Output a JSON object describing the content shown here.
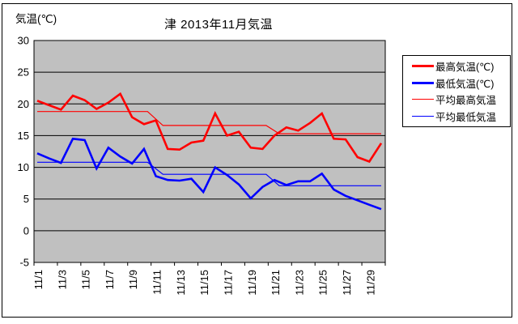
{
  "chart_data": {
    "type": "line",
    "title": "津 2013年11月気温",
    "ylabel": "気温(℃)",
    "ylim": [
      -5,
      30
    ],
    "yticks": [
      30,
      25,
      20,
      15,
      10,
      5,
      0,
      -5
    ],
    "x_days": [
      1,
      2,
      3,
      4,
      5,
      6,
      7,
      8,
      9,
      10,
      11,
      12,
      13,
      14,
      15,
      16,
      17,
      18,
      19,
      20,
      21,
      22,
      23,
      24,
      25,
      26,
      27,
      28,
      29,
      30
    ],
    "xticklabels": [
      "11/1",
      "11/3",
      "11/5",
      "11/7",
      "11/9",
      "11/11",
      "11/13",
      "11/15",
      "11/17",
      "11/19",
      "11/21",
      "11/23",
      "11/25",
      "11/27",
      "11/29"
    ],
    "grid": "horizontal-only",
    "plot_bg": "#c0c0c0",
    "grid_color": "#000000",
    "legend_position": "right",
    "series": [
      {
        "name": "最高気温(℃)",
        "color": "#ff0000",
        "style": "thick",
        "values": [
          20.5,
          19.8,
          19.1,
          21.3,
          20.6,
          19.2,
          20.2,
          21.6,
          17.9,
          16.8,
          17.4,
          12.9,
          12.8,
          13.9,
          14.2,
          18.5,
          15.0,
          15.6,
          13.1,
          12.9,
          15.0,
          16.3,
          15.8,
          17.0,
          18.5,
          14.5,
          14.4,
          11.6,
          10.9,
          13.8
        ]
      },
      {
        "name": "最低気温(℃)",
        "color": "#0000ff",
        "style": "thick",
        "values": [
          12.2,
          11.4,
          10.7,
          14.5,
          14.3,
          9.8,
          13.1,
          11.7,
          10.6,
          12.9,
          8.6,
          8.0,
          7.9,
          8.2,
          6.1,
          10.0,
          8.8,
          7.3,
          5.1,
          6.9,
          8.0,
          7.2,
          7.8,
          7.8,
          9.0,
          6.5,
          5.5,
          4.8,
          4.1,
          3.4
        ]
      },
      {
        "name": "平均最高気温",
        "color": "#ff0000",
        "style": "thin",
        "points": [
          [
            1,
            18.8
          ],
          [
            10.3,
            18.8
          ],
          [
            11.6,
            16.6
          ],
          [
            20.3,
            16.6
          ],
          [
            21.4,
            15.3
          ],
          [
            30,
            15.3
          ]
        ]
      },
      {
        "name": "平均最低気温",
        "color": "#0000ff",
        "style": "thin",
        "points": [
          [
            1,
            10.8
          ],
          [
            10.3,
            10.8
          ],
          [
            11.6,
            8.9
          ],
          [
            20.3,
            8.9
          ],
          [
            21.4,
            7.1
          ],
          [
            30,
            7.1
          ]
        ]
      }
    ]
  }
}
